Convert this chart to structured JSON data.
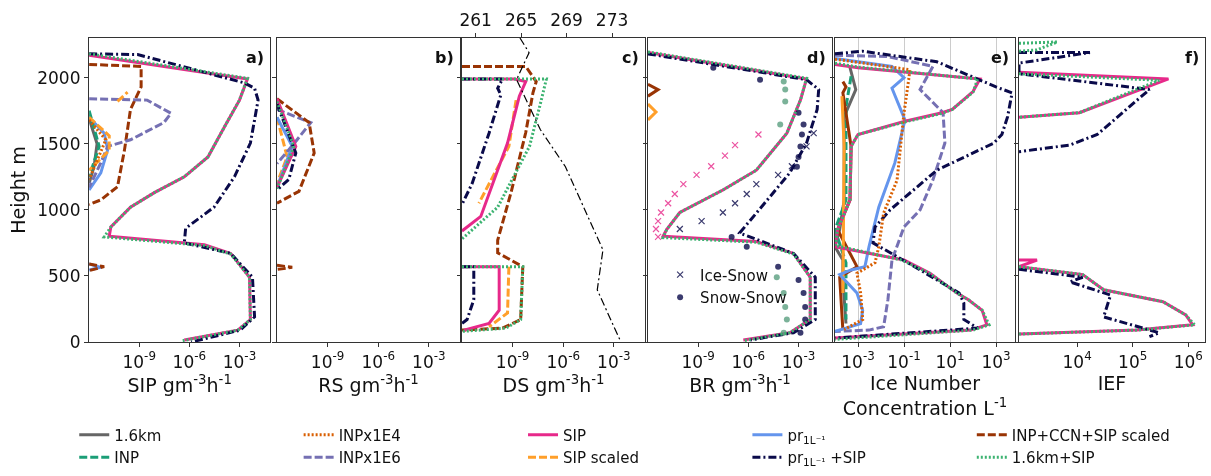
{
  "chart_data": [
    {
      "type": "line",
      "xlabel": "SIP gm$^{-3}$h$^{-1}$",
      "ylabel": "Height m",
      "annotations": [
        "a)"
      ],
      "log": "x",
      "legend": "bottom",
      "xlim": [
        1e-12,
        0.07
      ],
      "ylim": [
        0,
        2300
      ],
      "xticks": [
        {
          "value": 1e-09,
          "label": "10$^{-9}$"
        },
        {
          "value": 1e-06,
          "label": "10$^{-6}$"
        },
        {
          "value": 0.001,
          "label": "10$^{-3}$"
        }
      ],
      "yticks": [
        0,
        500,
        1000,
        1500,
        2000
      ],
      "series": [
        {
          "name": "1.6km",
          "color": "#666666",
          "line_style": "solid",
          "x": [
            1e-12,
            3e-12,
            2e-12,
            1e-12
          ],
          "values": [
            1690,
            1500,
            1330,
            1200
          ]
        },
        {
          "name": "INPx1E4",
          "color": "#d95f02",
          "line_style": "dotted",
          "x": [
            1e-12,
            1e-11,
            1e-12
          ],
          "values": [
            1680,
            1530,
            1230
          ]
        },
        {
          "name": "SIP",
          "color": "#e7298a",
          "line_style": "solid",
          "x": [
            1e-12,
            0.003,
            0.001,
            0.00013,
            1.3e-05,
            5e-07,
            8e-09,
            3e-10,
            2e-11,
            1.6e-11,
            8e-06,
            0.0003,
            0.004,
            0.0045,
            0.0008,
            5e-07
          ],
          "values": [
            2170,
            1990,
            1830,
            1630,
            1400,
            1250,
            1130,
            1020,
            870,
            800,
            735,
            670,
            490,
            170,
            90,
            15
          ]
        },
        {
          "name": "pr$_{1L⁻¹}$",
          "color": "#6495ed",
          "line_style": "solid",
          "x": [
            1e-12,
            8e-12,
            1.3e-11,
            5e-12,
            1e-12,
            null,
            1e-12,
            5e-12,
            1e-12
          ],
          "values": [
            1700,
            1580,
            1455,
            1280,
            1150,
            null,
            590,
            565,
            545
          ]
        },
        {
          "name": "INP+CCN+SIP scaled",
          "color": "#993404",
          "line_style": "dashed",
          "x": [
            1e-12,
            1.3e-09,
            1.3e-09,
            3e-10,
            1.3e-10,
            5e-11,
            5e-12,
            1e-12,
            null,
            1e-12,
            8e-12,
            1e-12
          ],
          "values": [
            2100,
            2085,
            1930,
            1760,
            1450,
            1175,
            1075,
            1040,
            null,
            590,
            570,
            540
          ]
        },
        {
          "name": "INP",
          "color": "#1b9e77",
          "line_style": "dashed",
          "x": [
            1e-12,
            4e-12,
            1e-12
          ],
          "values": [
            1750,
            1480,
            1250
          ]
        },
        {
          "name": "INPx1E6",
          "color": "#7570b3",
          "line_style": "dashed",
          "x": [
            1e-12,
            3e-09,
            8e-08,
            3e-08,
            3e-10,
            1.3e-11,
            5e-12,
            1e-12
          ],
          "values": [
            1840,
            1830,
            1730,
            1660,
            1530,
            1480,
            1355,
            1170
          ]
        },
        {
          "name": "SIP scaled",
          "color": "#ff9f2a",
          "line_style": "dashed",
          "x": [
            5e-11,
            2e-10,
            null,
            1e-12,
            1.6e-11,
            1.6e-11,
            1e-12
          ],
          "values": [
            1820,
            1890,
            null,
            1700,
            1560,
            1450,
            1300
          ]
        },
        {
          "name": "pr$_{1L⁻¹}$ +SIP",
          "color": "#0a0a4a",
          "line_style": "dashdot",
          "x": [
            1e-12,
            8e-10,
            0.002,
            0.008,
            0.013,
            0.008,
            0.0045,
            0.0005,
            3e-05,
            6e-07,
            5e-07,
            0.0003,
            0.006,
            0.008,
            0.0011,
            1.3e-06
          ],
          "values": [
            2180,
            2175,
            1960,
            1920,
            1830,
            1680,
            1505,
            1250,
            1020,
            860,
            750,
            670,
            490,
            190,
            90,
            0
          ]
        },
        {
          "name": "1.6km+SIP",
          "color": "#3cb371",
          "line_style": "dotted",
          "x": [
            1e-12,
            0.003,
            0.001,
            0.00013,
            1.3e-05,
            5e-07,
            8e-09,
            3e-10,
            2e-11,
            8e-12,
            8e-06,
            0.0003,
            0.004,
            0.0045,
            0.0008,
            4e-07
          ],
          "values": [
            2180,
            1995,
            1830,
            1630,
            1400,
            1250,
            1130,
            1020,
            870,
            795,
            730,
            665,
            490,
            170,
            90,
            10
          ]
        }
      ]
    },
    {
      "type": "line",
      "xlabel": "RS gm$^{-3}$h$^{-1}$",
      "annotations": [
        "b)"
      ],
      "log": "x",
      "tick_labels": "x",
      "xlim": [
        1e-12,
        0.07
      ],
      "ylim": [
        0,
        2300
      ],
      "xticks": [
        {
          "value": 1e-09,
          "label": "10$^{-9}$"
        },
        {
          "value": 1e-06,
          "label": "10$^{-6}$"
        },
        {
          "value": 0.001,
          "label": "10$^{-3}$"
        }
      ],
      "yticks": [
        0,
        500,
        1000,
        1500,
        2000
      ],
      "series": [
        {
          "color": "#ff9f2a",
          "line_style": "dashed",
          "x": [
            1e-12,
            4e-12,
            1e-12
          ],
          "values": [
            1700,
            1400,
            1200
          ]
        },
        {
          "color": "#6495ed",
          "line_style": "solid",
          "x": [
            1e-12,
            8e-12,
            1e-12
          ],
          "values": [
            1700,
            1480,
            1170
          ]
        },
        {
          "color": "#7570b3",
          "line_style": "dashed",
          "x": [
            1e-12,
            1e-10,
            1e-11,
            1e-12
          ],
          "values": [
            1760,
            1660,
            1500,
            1350
          ]
        },
        {
          "color": "#993404",
          "line_style": "dashed",
          "x": [
            1e-12,
            8e-11,
            1.6e-10,
            2e-11,
            1e-12,
            null,
            1e-12,
            8e-12,
            1e-12
          ],
          "values": [
            1840,
            1660,
            1430,
            1140,
            1050,
            null,
            580,
            565,
            550
          ]
        },
        {
          "color": "#e7298a",
          "line_style": "solid",
          "x": [
            1e-12,
            1.3e-11,
            1e-12
          ],
          "values": [
            1840,
            1480,
            1170
          ]
        },
        {
          "color": "#0a0a4a",
          "line_style": "dashdot",
          "x": [
            1e-12,
            1.3e-11,
            5e-12,
            1e-12
          ],
          "values": [
            1800,
            1430,
            1230,
            1150
          ]
        },
        {
          "color": "#3cb371",
          "line_style": "dotted",
          "x": [
            1e-12,
            1e-11,
            1e-12
          ],
          "values": [
            1820,
            1480,
            1160
          ]
        }
      ]
    },
    {
      "type": "line",
      "xlabel": "DS gm$^{-3}$h$^{-1}$",
      "annotations": [
        "c)"
      ],
      "log": "x",
      "tick_labels": "x",
      "xlim": [
        1e-12,
        0.07
      ],
      "ylim": [
        0,
        2300
      ],
      "x2lim": [
        259.8,
        275.9
      ],
      "xticks": [
        {
          "value": 1e-09,
          "label": "10$^{-9}$"
        },
        {
          "value": 1e-06,
          "label": "10$^{-6}$"
        },
        {
          "value": 0.001,
          "label": "10$^{-3}$"
        }
      ],
      "x2ticks": [
        261,
        265,
        269,
        273
      ],
      "yticks": [
        0,
        500,
        1000,
        1500,
        2000
      ],
      "series": [
        {
          "color": "#ff9f2a",
          "line_style": "dashed",
          "x": [
            1.6e-09,
            6e-10,
            1e-11,
            null,
            6e-10,
            5e-10,
            4e-11
          ],
          "values": [
            1830,
            1480,
            1050,
            null,
            570,
            220,
            115
          ]
        },
        {
          "color": "#993404",
          "line_style": "dashed",
          "x": [
            1e-12,
            6e-09,
            2.5e-08,
            1.6e-08,
            6e-09,
            8e-10,
            1.3e-10,
            1.3e-10,
            4e-09,
            3e-09,
            2.5e-10,
            1e-12
          ],
          "values": [
            2085,
            2085,
            1970,
            1885,
            1585,
            1130,
            770,
            675,
            570,
            170,
            105,
            90
          ]
        },
        {
          "color": "#e7298a",
          "line_style": "solid",
          "x": [
            1e-12,
            1.3e-09,
            6e-09,
            2.5e-09,
            5e-10,
            1.3e-11,
            1e-12,
            null,
            1e-12,
            1.6e-10,
            1.6e-10,
            4e-11,
            1.3e-12
          ],
          "values": [
            1990,
            1990,
            1970,
            1860,
            1505,
            950,
            840,
            null,
            570,
            570,
            240,
            140,
            90
          ]
        },
        {
          "color": "#0a0a4a",
          "line_style": "dashdot",
          "x": [
            1e-12,
            2.5e-10,
            1.3e-10,
            2e-10,
            4e-11,
            4e-12,
            1e-12,
            null,
            1e-12,
            5e-12,
            5e-12,
            2e-12,
            1e-12
          ],
          "values": [
            1990,
            1990,
            1920,
            1870,
            1580,
            1200,
            1040,
            null,
            570,
            570,
            320,
            170,
            140
          ]
        },
        {
          "color": "#3cb371",
          "line_style": "dotted",
          "x": [
            1e-12,
            1e-07,
            5e-08,
            1e-08,
            1.3e-10,
            1e-12,
            null,
            1e-12,
            4e-09,
            3e-09,
            4e-10,
            1e-12
          ],
          "values": [
            1990,
            1990,
            1830,
            1480,
            1020,
            780,
            null,
            570,
            570,
            170,
            105,
            80
          ]
        },
        {
          "color": "#000000",
          "line_style": "dashdot",
          "axis": "x2",
          "x": [
            264.9,
            265.7,
            264.6,
            266.7,
            268.9,
            272.2,
            271.7,
            273.7
          ],
          "values": [
            2300,
            2189,
            1985,
            1606,
            1326,
            697,
            394,
            15
          ]
        }
      ]
    },
    {
      "type": "line",
      "xlabel": "BR gm$^{-3}$h$^{-1}$",
      "annotations": [
        "d)"
      ],
      "log": "x",
      "tick_labels": "x",
      "legend": "bottom left",
      "xlim": [
        1e-12,
        0.1
      ],
      "ylim": [
        0,
        2300
      ],
      "xticks": [
        {
          "value": 1e-09,
          "label": "10$^{-9}$"
        },
        {
          "value": 1e-06,
          "label": "10$^{-6}$"
        },
        {
          "value": 0.001,
          "label": "10$^{-3}$"
        }
      ],
      "yticks": [
        0,
        500,
        1000,
        1500,
        2000
      ],
      "series": [
        {
          "color": "#993404",
          "line_style": "solid",
          "x": [
            1e-12,
            4e-12,
            1e-12
          ],
          "values": [
            1950,
            1910,
            1860
          ]
        },
        {
          "color": "#ff9f2a",
          "line_style": "solid",
          "x": [
            1e-12,
            3e-12,
            1e-12
          ],
          "values": [
            1800,
            1740,
            1680
          ]
        },
        {
          "color": "#e7298a",
          "line_style": "solid",
          "x": [
            1e-12,
            0.003,
            0.0013,
            0.0002,
            3e-06,
            3e-08,
            8e-11,
            1.3e-11,
            8e-12,
            3e-06,
            0.0005,
            0.005,
            0.005,
            0.0003,
            5e-07
          ],
          "values": [
            2190,
            1990,
            1830,
            1580,
            1300,
            1150,
            980,
            850,
            800,
            760,
            670,
            490,
            170,
            70,
            15
          ]
        },
        {
          "color": "#0a0a4a",
          "line_style": "dashdot",
          "x": [
            1e-12,
            0.003,
            0.016,
            0.013,
            0.003,
            0.0003,
            3e-06,
            3e-07,
            0.0005,
            0.01,
            0.01,
            0.0005,
            1.3e-06
          ],
          "values": [
            2180,
            1985,
            1910,
            1760,
            1505,
            1280,
            975,
            825,
            670,
            490,
            170,
            70,
            15
          ]
        },
        {
          "color": "#3cb371",
          "line_style": "dotted",
          "x": [
            1e-12,
            0.003,
            0.0013,
            0.0002,
            3e-06,
            3e-08,
            8e-11,
            1.3e-11,
            8e-12,
            3e-06,
            0.0005,
            0.005,
            0.005,
            0.0003,
            5e-07
          ],
          "values": [
            2195,
            1995,
            1830,
            1580,
            1300,
            1150,
            980,
            850,
            790,
            755,
            665,
            490,
            170,
            70,
            10
          ]
        },
        {
          "type": "scatter",
          "color": "#e7298a",
          "marker": "cross",
          "x": [
            4e-06,
            1.6e-07,
            4e-08,
            6e-09,
            8e-10,
            1.3e-10,
            4e-11,
            1.6e-11,
            6e-12,
            4e-12,
            3e-12,
            4e-12
          ],
          "values": [
            1570,
            1490,
            1410,
            1330,
            1265,
            1195,
            1120,
            1050,
            980,
            915,
            855,
            795
          ]
        },
        {
          "type": "scatter",
          "name": "Ice-Snow",
          "color": "#0a0a4a",
          "marker": "cross",
          "x": [
            0.008,
            0.003,
            0.0004,
            6e-05,
            3e-06,
            8e-07,
            1.6e-07,
            3e-08,
            1.6e-09,
            8e-11
          ],
          "values": [
            1580,
            1480,
            1330,
            1265,
            1195,
            1120,
            1050,
            980,
            915,
            855
          ]
        },
        {
          "type": "scatter",
          "color": "#5a9f80",
          "marker": "circle",
          "x": [
            0.00013,
            0.00016,
            0.00016,
            8e-05,
            5e-05,
            0.00013,
            0.00016,
            0.0002,
            0.00013
          ],
          "values": [
            1970,
            1910,
            1820,
            1645,
            490,
            370,
            265,
            170,
            70
          ]
        },
        {
          "type": "scatter",
          "name": "Snow-Snow",
          "color": "#0a0a4a",
          "marker": "circle",
          "x": [
            8e-09,
            5e-06,
            0.001,
            0.002,
            0.0016,
            0.0013,
            0.001,
            0.0008,
            1e-07,
            8e-07,
            6e-05,
            0.001,
            0.002,
            0.0025,
            0.0025,
            0.0013
          ],
          "values": [
            2075,
            1985,
            1735,
            1645,
            1570,
            1480,
            1400,
            1325,
            795,
            720,
            570,
            470,
            370,
            265,
            170,
            70
          ]
        }
      ]
    },
    {
      "type": "line",
      "xlabel": "Ice Number\nConcentration L$^{-1}$",
      "annotations": [
        "e)"
      ],
      "log": "x",
      "tick_labels": "x",
      "grid": "x",
      "xlim": [
        0.0001,
        6700
      ],
      "ylim": [
        0,
        2300
      ],
      "xticks": [
        {
          "value": 0.001,
          "label": "10$^{-3}$"
        },
        {
          "value": 0.1,
          "label": "10$^{-1}$"
        },
        {
          "value": 10,
          "label": "10$^{1}$"
        },
        {
          "value": 1000,
          "label": "10$^{3}$"
        }
      ],
      "yticks": [
        0,
        500,
        1000,
        1500,
        2000
      ],
      "series": [
        {
          "color": "#666666",
          "line_style": "solid",
          "x": [
            0.00045,
            0.0008,
            0.00025,
            0.00025,
            0.00016,
            0.0001,
            0.00022,
            0.00022,
            0.0003
          ],
          "values": [
            2075,
            1910,
            1705,
            1075,
            850,
            720,
            620,
            470,
            140
          ]
        },
        {
          "color": "#1b9e77",
          "line_style": "dashed",
          "x": [
            0.0005,
            0.0003,
            0.0003,
            0.0001,
            0.0003,
            0.0003
          ],
          "values": [
            2010,
            1780,
            1075,
            850,
            600,
            170
          ]
        },
        {
          "color": "#993404",
          "line_style": "solid",
          "x": [
            0.00022,
            0.0003,
            0.00022,
            0.0005,
            0.00045,
            0.00013,
            0.0009,
            0.00016,
            0.00022
          ],
          "values": [
            1970,
            1930,
            1885,
            1480,
            1075,
            850,
            570,
            490,
            90
          ]
        },
        {
          "color": "#ff9f2a",
          "line_style": "solid",
          "x": [
            0.0002,
            0.00025,
            0.00022
          ],
          "values": [
            1860,
            1480,
            370
          ]
        },
        {
          "color": "#d95f02",
          "line_style": "dotted",
          "x": [
            0.0001,
            0.18,
            0.16,
            0.1,
            0.05,
            0.013,
            0.008,
            0.0055,
            0.0009,
            0.0013,
            0.0016,
            0.00025
          ],
          "values": [
            2140,
            2060,
            1985,
            1735,
            1225,
            975,
            720,
            600,
            520,
            370,
            170,
            95
          ]
        },
        {
          "color": "#7570b3",
          "line_style": "dashed",
          "x": [
            0.0001,
            0.02,
            1.8,
            0.5,
            5,
            6,
            1.8,
            0.5,
            0.1,
            0.03,
            0.02,
            0.013,
            0.003,
            0.0001
          ],
          "values": [
            2170,
            2160,
            2085,
            1910,
            1735,
            1505,
            1225,
            1000,
            870,
            620,
            320,
            115,
            90,
            80
          ]
        },
        {
          "color": "#6495ed",
          "line_style": "solid",
          "x": [
            0.0001,
            0.03,
            0.1,
            0.03,
            0.11,
            0.04,
            0.008,
            0.003,
            0.002,
            0.0005,
            0.00016,
            0.0009,
            0.0016,
            0.0013,
            0.0003,
            0.0001
          ],
          "values": [
            2145,
            2085,
            2000,
            1920,
            1680,
            1355,
            1020,
            720,
            570,
            545,
            510,
            370,
            240,
            140,
            105,
            80
          ]
        },
        {
          "color": "#e7298a",
          "line_style": "solid",
          "x": [
            0.0001,
            0.001,
            200,
            100,
            12.6,
            4.5,
            0.11,
            0.001,
            0.0005,
            0.00045,
            0.00013,
            0.0001,
            0.1,
            1.35,
            20,
            63,
            250,
            400,
            80,
            0.0001
          ],
          "values": [
            2100,
            2075,
            1990,
            1895,
            1760,
            1735,
            1670,
            1570,
            1480,
            1075,
            850,
            720,
            620,
            520,
            370,
            320,
            240,
            130,
            90,
            30
          ]
        },
        {
          "color": "#0a0a4a",
          "line_style": "dashdot",
          "x": [
            0.0001,
            0.0016,
            2.7,
            1000,
            5000,
            3200,
            1800,
            800,
            2.7,
            0.025,
            0.0055,
            0.0045,
            0.5,
            25,
            40,
            40,
            160,
            0.0001
          ],
          "values": [
            2180,
            2200,
            2120,
            1930,
            1885,
            1705,
            1570,
            1505,
            1300,
            1000,
            870,
            750,
            545,
            370,
            295,
            170,
            105,
            30
          ]
        },
        {
          "color": "#3cb371",
          "line_style": "dotted",
          "x": [
            0.0001,
            0.001,
            160,
            100,
            12.6,
            4.5,
            0.11,
            0.001,
            0.0005,
            0.00045,
            0.00013,
            0.0001,
            0.08,
            1.3,
            20,
            63,
            250,
            500,
            100,
            0.0001
          ],
          "values": [
            2110,
            2080,
            1990,
            1890,
            1760,
            1730,
            1665,
            1570,
            1480,
            1075,
            850,
            730,
            620,
            520,
            370,
            320,
            240,
            130,
            90,
            20
          ]
        }
      ]
    },
    {
      "type": "line",
      "xlabel": "IEF",
      "annotations": [
        "f)"
      ],
      "log": "x",
      "tick_labels": "x",
      "xlim": [
        900,
        2000000
      ],
      "ylim": [
        0,
        2300
      ],
      "xticks": [
        {
          "value": 10000,
          "label": "10$^{4}$"
        },
        {
          "value": 100000,
          "label": "10$^{5}$"
        },
        {
          "value": 1000000,
          "label": "10$^{6}$"
        }
      ],
      "yticks": [
        0,
        500,
        1000,
        1500,
        2000
      ],
      "series": [
        {
          "color": "#e7298a",
          "line_style": "solid",
          "x": [
            900,
            440000,
            11000,
            900,
            null,
            900,
            1900,
            900,
            12600,
            30000,
            350000,
            900000,
            1200000,
            120000,
            900
          ],
          "values": [
            2040,
            1990,
            1735,
            1700,
            null,
            620,
            620,
            570,
            510,
            395,
            305,
            205,
            130,
            90,
            60
          ]
        },
        {
          "color": "#0a0a4a",
          "line_style": "dashdot",
          "x": [
            900,
            17000,
            900,
            900,
            200000,
            23000,
            7400,
            900,
            null,
            900,
            12600,
            7400,
            40000,
            30000,
            300000,
            200000
          ],
          "values": [
            2190,
            2190,
            2110,
            2030,
            1910,
            1570,
            1490,
            1440,
            null,
            550,
            490,
            455,
            355,
            190,
            70,
            40
          ]
        },
        {
          "color": "#3cb371",
          "line_style": "dotted",
          "x": [
            900,
            4400,
            1900,
            900,
            null,
            900,
            300000,
            11000,
            900,
            null,
            900,
            12600,
            30000,
            350000,
            900000,
            1300000,
            120000,
            900
          ],
          "values": [
            2260,
            2270,
            2210,
            2200,
            null,
            2030,
            1980,
            1735,
            1700,
            null,
            570,
            510,
            395,
            305,
            205,
            130,
            90,
            60
          ]
        }
      ]
    }
  ]
}
